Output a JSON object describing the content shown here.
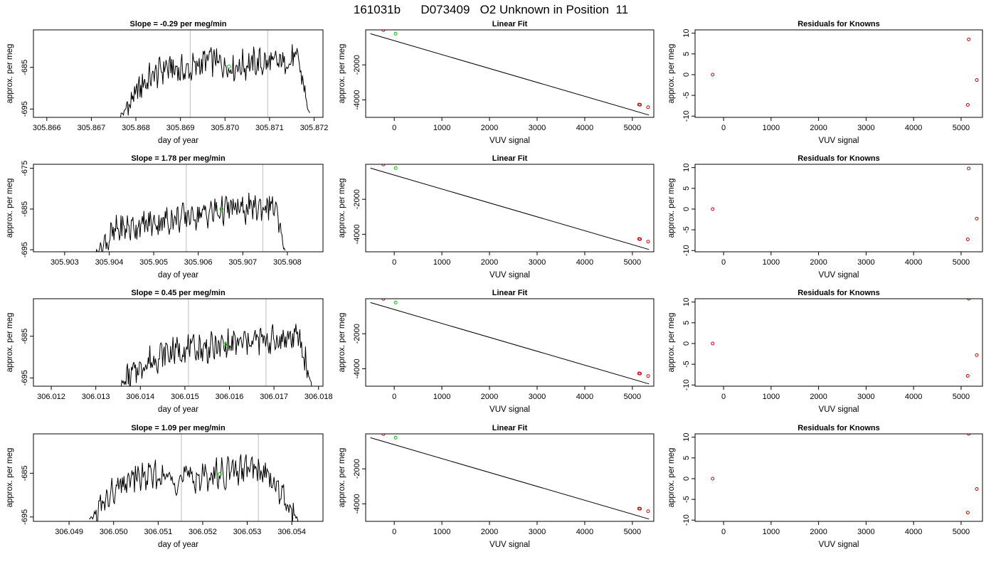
{
  "figure": {
    "title": "161031b      D073409   O2 Unknown in Position  11",
    "colors": {
      "trace": "#000000",
      "marker_known": "#cc0000",
      "marker_unknown": "#00cc00",
      "vline": "#c8c8c8"
    }
  },
  "chart_data": [
    {
      "type": "line",
      "row": 0,
      "col": 0,
      "title": "Slope =  -0.29  per meg/min",
      "xlabel": "day of year",
      "ylabel": "approx. per meg",
      "xlim": [
        305.8657,
        305.8722
      ],
      "ylim": [
        -697,
        -676
      ],
      "xticks": [
        305.866,
        305.867,
        305.868,
        305.869,
        305.87,
        305.871,
        305.872
      ],
      "xtick_labels": [
        "305.866",
        "305.867",
        "305.868",
        "305.869",
        "305.870",
        "305.871",
        "305.872"
      ],
      "yticks": [
        -695,
        -685
      ],
      "ytick_labels": [
        "-695",
        "-685"
      ],
      "trace_x": [
        305.86765,
        305.86815,
        305.86865,
        305.86915,
        305.86965,
        305.87015,
        305.87065,
        305.87115,
        305.87165,
        305.8719
      ],
      "trace_y": [
        -697,
        -689,
        -685,
        -686,
        -683,
        -685,
        -684,
        -684,
        -683,
        -697
      ],
      "vlines": [
        305.86922,
        305.87096
      ],
      "unknown_point": {
        "x": 305.87009,
        "y": -684.8
      }
    },
    {
      "type": "scatter",
      "row": 0,
      "col": 1,
      "title": "Linear Fit",
      "xlabel": "VUV signal",
      "ylabel": "approx. per meg",
      "xlim": [
        -600,
        5450
      ],
      "ylim": [
        -5000,
        0
      ],
      "xticks": [
        0,
        1000,
        2000,
        3000,
        4000,
        5000
      ],
      "xtick_labels": [
        "0",
        "1000",
        "2000",
        "3000",
        "4000",
        "5000"
      ],
      "yticks": [
        -4000,
        -2000
      ],
      "ytick_labels": [
        "-4000",
        "-2000"
      ],
      "line": [
        [
          -500,
          -220
        ],
        [
          5350,
          -4870
        ]
      ],
      "knowns": [
        {
          "x": -230,
          "y": -10
        },
        {
          "x": 5140,
          "y": -4270
        },
        {
          "x": 5160,
          "y": -4280
        },
        {
          "x": 5330,
          "y": -4420
        }
      ],
      "unknown": {
        "x": 30,
        "y": -220
      }
    },
    {
      "type": "scatter",
      "row": 0,
      "col": 2,
      "title": "Residuals for Knowns",
      "xlabel": "VUV signal",
      "ylabel": "approx. per meg",
      "xlim": [
        -600,
        5450
      ],
      "ylim": [
        -10.3,
        10.8
      ],
      "xticks": [
        0,
        1000,
        2000,
        3000,
        4000,
        5000
      ],
      "xtick_labels": [
        "0",
        "1000",
        "2000",
        "3000",
        "4000",
        "5000"
      ],
      "yticks": [
        -10,
        -5,
        0,
        5,
        10
      ],
      "ytick_labels": [
        "-10",
        "-5",
        "0",
        "5",
        "10"
      ],
      "points": [
        {
          "x": -230,
          "y": 0
        },
        {
          "x": 5160,
          "y": 8.5
        },
        {
          "x": 5330,
          "y": -1.3
        },
        {
          "x": 5140,
          "y": -7.3
        }
      ]
    },
    {
      "type": "line",
      "row": 1,
      "col": 0,
      "title": "Slope =  1.78  per meg/min",
      "xlabel": "day of year",
      "ylabel": "approx. per meg",
      "xlim": [
        305.9023,
        305.9088
      ],
      "ylim": [
        -695.5,
        -674
      ],
      "xticks": [
        305.903,
        305.904,
        305.905,
        305.906,
        305.907,
        305.908
      ],
      "xtick_labels": [
        "305.903",
        "305.904",
        "305.905",
        "305.906",
        "305.907",
        "305.908"
      ],
      "yticks": [
        -695,
        -685,
        -675
      ],
      "ytick_labels": [
        "-695",
        "-685",
        "-675"
      ],
      "trace_x": [
        305.9037,
        305.9042,
        305.9047,
        305.9052,
        305.9057,
        305.9062,
        305.9067,
        305.9072,
        305.9077,
        305.90795
      ],
      "trace_y": [
        -695.5,
        -690,
        -689,
        -688,
        -687,
        -686,
        -685,
        -685,
        -684,
        -695.5
      ],
      "vlines": [
        305.90573,
        305.90745
      ],
      "unknown_point": {
        "x": 305.90652,
        "y": -685
      }
    },
    {
      "type": "scatter",
      "row": 1,
      "col": 1,
      "title": "Linear Fit",
      "xlabel": "VUV signal",
      "ylabel": "approx. per meg",
      "xlim": [
        -600,
        5450
      ],
      "ylim": [
        -5000,
        0
      ],
      "xticks": [
        0,
        1000,
        2000,
        3000,
        4000,
        5000
      ],
      "xtick_labels": [
        "0",
        "1000",
        "2000",
        "3000",
        "4000",
        "5000"
      ],
      "yticks": [
        -4000,
        -2000
      ],
      "ytick_labels": [
        "-4000",
        "-2000"
      ],
      "line": [
        [
          -500,
          -220
        ],
        [
          5350,
          -4870
        ]
      ],
      "knowns": [
        {
          "x": -230,
          "y": -10
        },
        {
          "x": 5140,
          "y": -4270
        },
        {
          "x": 5160,
          "y": -4280
        },
        {
          "x": 5330,
          "y": -4420
        }
      ],
      "unknown": {
        "x": 30,
        "y": -220
      }
    },
    {
      "type": "scatter",
      "row": 1,
      "col": 2,
      "title": "Residuals for Knowns",
      "xlabel": "VUV signal",
      "ylabel": "approx. per meg",
      "xlim": [
        -600,
        5450
      ],
      "ylim": [
        -10.3,
        10.8
      ],
      "xticks": [
        0,
        1000,
        2000,
        3000,
        4000,
        5000
      ],
      "xtick_labels": [
        "0",
        "1000",
        "2000",
        "3000",
        "4000",
        "5000"
      ],
      "yticks": [
        -10,
        -5,
        0,
        5,
        10
      ],
      "ytick_labels": [
        "-10",
        "-5",
        "0",
        "5",
        "10"
      ],
      "points": [
        {
          "x": -230,
          "y": 0
        },
        {
          "x": 5160,
          "y": 9.8
        },
        {
          "x": 5330,
          "y": -2.3
        },
        {
          "x": 5140,
          "y": -7.3
        }
      ]
    },
    {
      "type": "line",
      "row": 2,
      "col": 0,
      "title": "Slope =  0.45  per meg/min",
      "xlabel": "day of year",
      "ylabel": "approx. per meg",
      "xlim": [
        306.0116,
        306.0181
      ],
      "ylim": [
        -697,
        -676
      ],
      "xticks": [
        306.012,
        306.013,
        306.014,
        306.015,
        306.016,
        306.017,
        306.018
      ],
      "xtick_labels": [
        "306.012",
        "306.013",
        "306.014",
        "306.015",
        "306.016",
        "306.017",
        "306.018"
      ],
      "yticks": [
        -695,
        -685
      ],
      "ytick_labels": [
        "-695",
        "-685"
      ],
      "trace_x": [
        306.01355,
        306.01405,
        306.01455,
        306.01505,
        306.01555,
        306.01605,
        306.01655,
        306.01705,
        306.01755,
        306.01785
      ],
      "trace_y": [
        -697,
        -692,
        -689,
        -688,
        -688,
        -687,
        -686,
        -686,
        -685,
        -697
      ],
      "vlines": [
        306.01508,
        306.01682
      ],
      "unknown_point": {
        "x": 306.0159,
        "y": -687
      }
    },
    {
      "type": "scatter",
      "row": 2,
      "col": 1,
      "title": "Linear Fit",
      "xlabel": "VUV signal",
      "ylabel": "approx. per meg",
      "xlim": [
        -600,
        5450
      ],
      "ylim": [
        -5000,
        0
      ],
      "xticks": [
        0,
        1000,
        2000,
        3000,
        4000,
        5000
      ],
      "xtick_labels": [
        "0",
        "1000",
        "2000",
        "3000",
        "4000",
        "5000"
      ],
      "yticks": [
        -4000,
        -2000
      ],
      "ytick_labels": [
        "-4000",
        "-2000"
      ],
      "line": [
        [
          -500,
          -220
        ],
        [
          5350,
          -4870
        ]
      ],
      "knowns": [
        {
          "x": -230,
          "y": -10
        },
        {
          "x": 5140,
          "y": -4270
        },
        {
          "x": 5160,
          "y": -4280
        },
        {
          "x": 5330,
          "y": -4420
        }
      ],
      "unknown": {
        "x": 30,
        "y": -220
      }
    },
    {
      "type": "scatter",
      "row": 2,
      "col": 2,
      "title": "Residuals for Knowns",
      "xlabel": "VUV signal",
      "ylabel": "approx. per meg",
      "xlim": [
        -600,
        5450
      ],
      "ylim": [
        -10.3,
        10.8
      ],
      "xticks": [
        0,
        1000,
        2000,
        3000,
        4000,
        5000
      ],
      "xtick_labels": [
        "0",
        "1000",
        "2000",
        "3000",
        "4000",
        "5000"
      ],
      "yticks": [
        -10,
        -5,
        0,
        5,
        10
      ],
      "ytick_labels": [
        "-10",
        "-5",
        "0",
        "5",
        "10"
      ],
      "points": [
        {
          "x": -230,
          "y": 0
        },
        {
          "x": 5160,
          "y": 10.8
        },
        {
          "x": 5330,
          "y": -2.8
        },
        {
          "x": 5140,
          "y": -7.8
        }
      ]
    },
    {
      "type": "line",
      "row": 3,
      "col": 0,
      "title": "Slope =  1.09  per meg/min",
      "xlabel": "day of year",
      "ylabel": "approx. per meg",
      "xlim": [
        306.0482,
        306.0547
      ],
      "ylim": [
        -696,
        -676
      ],
      "xticks": [
        306.049,
        306.05,
        306.051,
        306.052,
        306.053,
        306.054
      ],
      "xtick_labels": [
        "306.049",
        "306.050",
        "306.051",
        "306.052",
        "306.053",
        "306.054"
      ],
      "yticks": [
        -695,
        -685
      ],
      "ytick_labels": [
        "-695",
        "-685"
      ],
      "trace_x": [
        306.04945,
        306.04995,
        306.05045,
        306.05095,
        306.05145,
        306.05195,
        306.05245,
        306.05295,
        306.05345,
        306.05415
      ],
      "trace_y": [
        -696,
        -690,
        -686,
        -686,
        -686,
        -686,
        -685,
        -684,
        -685,
        -696
      ],
      "vlines": [
        306.05152,
        306.05325
      ],
      "unknown_point": {
        "x": 306.05238,
        "y": -685.2
      }
    },
    {
      "type": "scatter",
      "row": 3,
      "col": 1,
      "title": "Linear Fit",
      "xlabel": "VUV signal",
      "ylabel": "approx. per meg",
      "xlim": [
        -600,
        5450
      ],
      "ylim": [
        -5000,
        0
      ],
      "xticks": [
        0,
        1000,
        2000,
        3000,
        4000,
        5000
      ],
      "xtick_labels": [
        "0",
        "1000",
        "2000",
        "3000",
        "4000",
        "5000"
      ],
      "yticks": [
        -4000,
        -2000
      ],
      "ytick_labels": [
        "-4000",
        "-2000"
      ],
      "line": [
        [
          -500,
          -220
        ],
        [
          5350,
          -4870
        ]
      ],
      "knowns": [
        {
          "x": -230,
          "y": -10
        },
        {
          "x": 5140,
          "y": -4270
        },
        {
          "x": 5160,
          "y": -4280
        },
        {
          "x": 5330,
          "y": -4420
        }
      ],
      "unknown": {
        "x": 30,
        "y": -220
      }
    },
    {
      "type": "scatter",
      "row": 3,
      "col": 2,
      "title": "Residuals for Knowns",
      "xlabel": "VUV signal",
      "ylabel": "approx. per meg",
      "xlim": [
        -600,
        5450
      ],
      "ylim": [
        -10.3,
        10.8
      ],
      "xticks": [
        0,
        1000,
        2000,
        3000,
        4000,
        5000
      ],
      "xtick_labels": [
        "0",
        "1000",
        "2000",
        "3000",
        "4000",
        "5000"
      ],
      "yticks": [
        -10,
        -5,
        0,
        5,
        10
      ],
      "ytick_labels": [
        "-10",
        "-5",
        "0",
        "5",
        "10"
      ],
      "points": [
        {
          "x": -230,
          "y": 0
        },
        {
          "x": 5160,
          "y": 10.8
        },
        {
          "x": 5330,
          "y": -2.5
        },
        {
          "x": 5140,
          "y": -8.2
        }
      ]
    }
  ]
}
